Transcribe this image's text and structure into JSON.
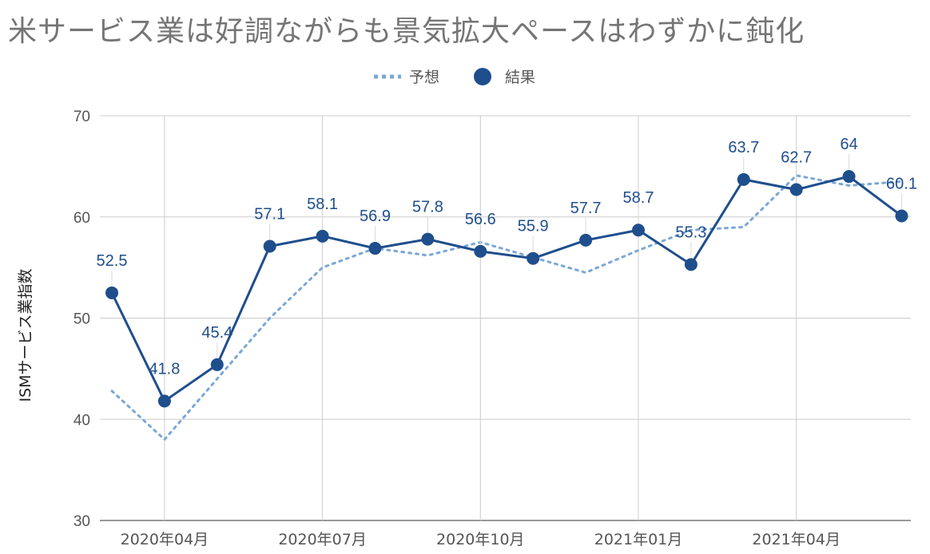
{
  "chart_data": {
    "type": "line",
    "title": "米サービス業は好調ながらも景気拡大ペースはわずかに鈍化",
    "ylabel": "ISMサービス業指数",
    "xlabel": "",
    "ylim": [
      30,
      70
    ],
    "yticks": [
      30,
      40,
      50,
      60,
      70
    ],
    "grid": true,
    "legend_position": "top-center",
    "x": [
      "2020-03",
      "2020-04",
      "2020-05",
      "2020-06",
      "2020-07",
      "2020-08",
      "2020-09",
      "2020-10",
      "2020-11",
      "2020-12",
      "2021-01",
      "2021-02",
      "2021-03",
      "2021-04",
      "2021-05",
      "2021-06"
    ],
    "x_tick_labels": [
      {
        "x": "2020-04",
        "label": "2020年04月"
      },
      {
        "x": "2020-07",
        "label": "2020年07月"
      },
      {
        "x": "2020-10",
        "label": "2020年10月"
      },
      {
        "x": "2021-01",
        "label": "2021年01月"
      },
      {
        "x": "2021-04",
        "label": "2021年04月"
      }
    ],
    "series": [
      {
        "name": "予想",
        "style": "dotted",
        "color": "#7ba7d6",
        "values": [
          42.8,
          38.0,
          44.0,
          50.0,
          55.0,
          56.9,
          56.2,
          57.5,
          56.0,
          54.5,
          56.7,
          58.7,
          59.0,
          64.1,
          63.1,
          63.5
        ]
      },
      {
        "name": "結果",
        "style": "solid-markers",
        "color": "#1f4e8c",
        "values": [
          52.5,
          41.8,
          45.4,
          57.1,
          58.1,
          56.9,
          57.8,
          56.6,
          55.9,
          57.7,
          58.7,
          55.3,
          63.7,
          62.7,
          64.0,
          60.1
        ],
        "labels": [
          "52.5",
          "41.8",
          "45.4",
          "57.1",
          "58.1",
          "56.9",
          "57.8",
          "56.6",
          "55.9",
          "57.7",
          "58.7",
          "55.3",
          "63.7",
          "62.7",
          "64",
          "60.1"
        ]
      }
    ]
  }
}
